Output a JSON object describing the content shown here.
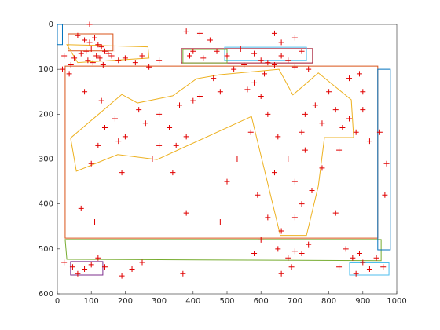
{
  "chart_data": {
    "type": "scatter",
    "xlim": [
      0,
      1000
    ],
    "ylim": [
      0,
      600
    ],
    "y_reverse": true,
    "xticks": [
      0,
      100,
      200,
      300,
      400,
      500,
      600,
      700,
      800,
      900,
      1000
    ],
    "yticks": [
      0,
      100,
      200,
      300,
      400,
      500,
      600
    ],
    "series": [
      {
        "mode": "markers",
        "marker": "+",
        "color": "#e00000",
        "x": [
          60,
          80,
          95,
          110,
          120,
          130,
          140,
          100,
          85,
          70,
          115,
          125,
          150,
          160,
          50,
          90,
          105,
          135,
          170,
          20,
          40,
          180,
          200,
          230,
          250,
          270,
          300,
          15,
          35,
          95,
          380,
          420,
          450,
          400,
          390,
          430,
          470,
          500,
          540,
          580,
          600,
          620,
          640,
          660,
          680,
          700,
          550,
          520,
          640,
          660,
          700,
          720,
          740,
          610,
          580,
          560,
          480,
          420,
          460,
          80,
          130,
          170,
          140,
          180,
          200,
          240,
          260,
          300,
          330,
          360,
          400,
          380,
          350,
          300,
          280,
          120,
          100,
          190,
          340,
          70,
          110,
          380,
          480,
          600,
          620,
          650,
          680,
          700,
          720,
          730,
          760,
          780,
          800,
          820,
          840,
          860,
          880,
          900,
          920,
          860,
          890,
          900,
          830,
          780,
          720,
          700,
          640,
          590,
          620,
          660,
          730,
          750,
          950,
          970,
          965,
          570,
          530,
          500,
          820,
          600,
          20,
          45,
          60,
          80,
          100,
          120,
          140,
          190,
          220,
          250,
          370,
          650,
          680,
          690,
          700,
          720,
          660,
          740,
          850,
          870,
          890,
          900,
          920,
          940,
          880,
          830,
          960,
          580
        ],
        "y": [
          25,
          35,
          40,
          30,
          45,
          50,
          60,
          55,
          60,
          65,
          70,
          75,
          65,
          70,
          75,
          80,
          85,
          90,
          55,
          70,
          90,
          80,
          75,
          85,
          70,
          95,
          80,
          100,
          110,
          0,
          15,
          20,
          35,
          60,
          70,
          75,
          60,
          70,
          55,
          65,
          80,
          85,
          90,
          70,
          80,
          95,
          90,
          100,
          20,
          40,
          30,
          60,
          100,
          110,
          130,
          145,
          150,
          160,
          120,
          150,
          170,
          210,
          230,
          260,
          250,
          190,
          220,
          200,
          230,
          180,
          170,
          250,
          270,
          270,
          300,
          270,
          310,
          330,
          330,
          410,
          440,
          420,
          440,
          160,
          200,
          250,
          300,
          350,
          240,
          200,
          180,
          220,
          150,
          190,
          230,
          210,
          240,
          190,
          260,
          120,
          110,
          150,
          280,
          320,
          400,
          430,
          330,
          380,
          430,
          460,
          280,
          370,
          240,
          310,
          380,
          240,
          300,
          350,
          420,
          480,
          530,
          540,
          555,
          545,
          535,
          520,
          540,
          560,
          545,
          530,
          555,
          500,
          520,
          540,
          505,
          510,
          555,
          490,
          500,
          520,
          510,
          530,
          545,
          520,
          555,
          540,
          540,
          510
        ]
      },
      {
        "mode": "lines",
        "color": "#0072bd",
        "x": [
          0,
          15,
          15,
          0
        ],
        "y": [
          0,
          0,
          45,
          45
        ]
      },
      {
        "mode": "lines",
        "color": "#d95319",
        "x": [
          32,
          164,
          164,
          32
        ],
        "y": [
          21,
          21,
          59,
          59
        ]
      },
      {
        "mode": "lines",
        "color": "#edb120",
        "x": [
          28,
          267,
          270,
          60
        ],
        "y": [
          45,
          50,
          75,
          85
        ]
      },
      {
        "mode": "lines",
        "color": "#a2142f",
        "x": [
          366,
          752,
          752,
          366
        ],
        "y": [
          54,
          54,
          86,
          86
        ]
      },
      {
        "mode": "lines",
        "color": "#4dbeee",
        "x": [
          493,
          734,
          734,
          493
        ],
        "y": [
          51,
          51,
          80,
          80
        ]
      },
      {
        "mode": "lines",
        "color": "#77ac30",
        "x": [
          370,
          500,
          500,
          370
        ],
        "y": [
          56,
          56,
          86,
          86
        ]
      },
      {
        "mode": "lines",
        "color": "#d95319",
        "x": [
          23,
          944,
          944,
          23
        ],
        "y": [
          93,
          93,
          476,
          476
        ]
      },
      {
        "mode": "lines",
        "color": "#edb120",
        "x": [
          39,
          56,
          178,
          294,
          572,
          657,
          734,
          769,
          787,
          873,
          866,
          769,
          694,
          653,
          479,
          410,
          340,
          236,
          190
        ],
        "y": [
          253,
          327,
          290,
          301,
          205,
          470,
          470,
          360,
          252,
          252,
          168,
          108,
          157,
          100,
          112,
          121,
          159,
          175,
          156
        ]
      },
      {
        "mode": "lines",
        "color": "#77ac30",
        "x": [
          23,
          954,
          954,
          28
        ],
        "y": [
          479,
          479,
          526,
          523
        ]
      },
      {
        "mode": "lines",
        "color": "#0072bd",
        "x": [
          944,
          981,
          981,
          944
        ],
        "y": [
          100,
          100,
          502,
          502
        ]
      },
      {
        "mode": "lines",
        "color": "#7e2f8e",
        "x": [
          39,
          134,
          134,
          39
        ],
        "y": [
          528,
          528,
          558,
          558
        ]
      },
      {
        "mode": "lines",
        "color": "#4dbeee",
        "x": [
          861,
          977,
          977,
          861
        ],
        "y": [
          531,
          531,
          558,
          558
        ]
      }
    ]
  }
}
